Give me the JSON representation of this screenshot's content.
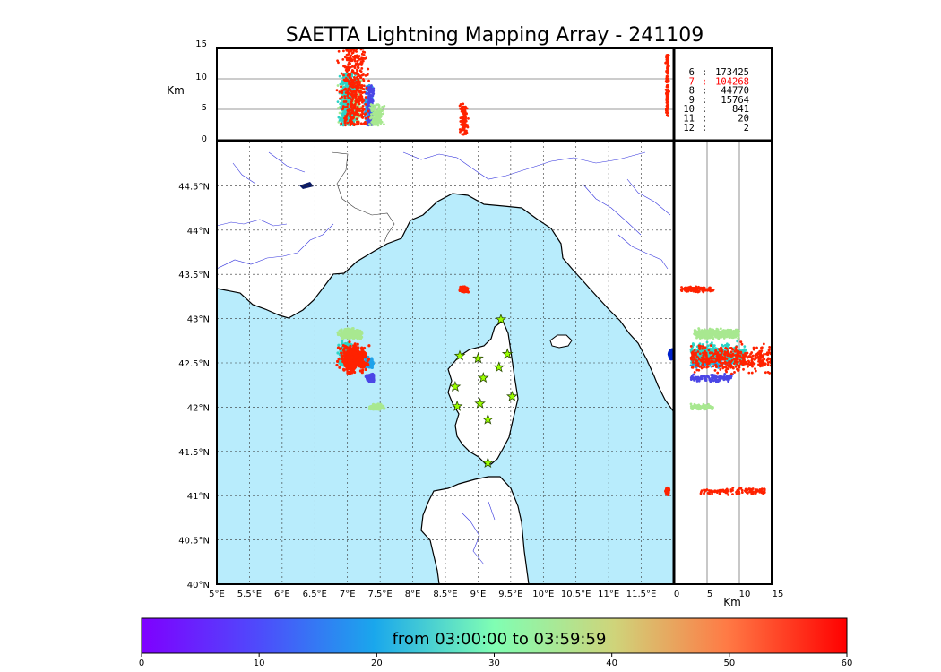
{
  "chart_data": {
    "type": "scatter",
    "title": "SAETTA Lightning Mapping Array - 241109",
    "colorbar_label": "from 03:00:00 to 03:59:59",
    "map": {
      "lon_range": [
        5.0,
        12.0
      ],
      "lat_range": [
        40.0,
        45.0
      ],
      "x_tick_labels": [
        "5°E",
        "5.5°E",
        "6°E",
        "6.5°E",
        "7°E",
        "7.5°E",
        "8°E",
        "8.5°E",
        "9°E",
        "9.5°E",
        "10°E",
        "10.5°E",
        "11°E",
        "11.5°E"
      ],
      "y_tick_labels": [
        "40°N",
        "40.5°N",
        "41°N",
        "41.5°N",
        "42°N",
        "42.5°N",
        "43°N",
        "43.5°N",
        "44°N",
        "44.5°N"
      ],
      "grid": true,
      "sea_color": "#b8ecfc",
      "river_color": "#3333dd"
    },
    "altitude_panel": {
      "ylabel": "Km",
      "ylim": [
        0,
        15
      ],
      "y_tick_labels": [
        "0",
        "5",
        "10",
        "15"
      ]
    },
    "side_panel": {
      "xlabel": "Km",
      "xlim": [
        0,
        15
      ],
      "x_tick_labels": [
        "0",
        "5",
        "10",
        "15"
      ]
    },
    "station_counts": [
      {
        "stations": "6",
        "count": "173425",
        "highlight": false
      },
      {
        "stations": "7",
        "count": "104268",
        "highlight": true
      },
      {
        "stations": "8",
        "count": "44770",
        "highlight": false
      },
      {
        "stations": "9",
        "count": "15764",
        "highlight": false
      },
      {
        "stations": "10",
        "count": "841",
        "highlight": false
      },
      {
        "stations": "11",
        "count": "20",
        "highlight": false
      },
      {
        "stations": "12",
        "count": "2",
        "highlight": false
      }
    ],
    "colorbar": {
      "min": 0,
      "max": 60,
      "tick_labels": [
        "0",
        "10",
        "20",
        "30",
        "40",
        "50",
        "60"
      ],
      "colormap": "rainbow"
    },
    "stations": [
      {
        "lon": 9.35,
        "lat": 42.99
      },
      {
        "lon": 8.72,
        "lat": 42.58
      },
      {
        "lon": 9.0,
        "lat": 42.55
      },
      {
        "lon": 9.45,
        "lat": 42.6
      },
      {
        "lon": 9.32,
        "lat": 42.45
      },
      {
        "lon": 9.08,
        "lat": 42.33
      },
      {
        "lon": 8.65,
        "lat": 42.23
      },
      {
        "lon": 9.52,
        "lat": 42.12
      },
      {
        "lon": 8.68,
        "lat": 42.01
      },
      {
        "lon": 9.03,
        "lat": 42.04
      },
      {
        "lon": 9.15,
        "lat": 41.86
      },
      {
        "lon": 9.15,
        "lat": 41.37
      }
    ],
    "clusters": [
      {
        "lon": 7.05,
        "lat": 42.83,
        "lon_spread": 0.22,
        "lat_spread": 0.07,
        "alt_min": 3,
        "alt_max": 10,
        "color": "#a8e890"
      },
      {
        "lon": 7.32,
        "lat": 42.5,
        "lon_spread": 0.1,
        "lat_spread": 0.08,
        "alt_min": 2.5,
        "alt_max": 9,
        "color": "#1ea2ea"
      },
      {
        "lon": 7.35,
        "lat": 42.33,
        "lon_spread": 0.08,
        "lat_spread": 0.05,
        "alt_min": 2.5,
        "alt_max": 9,
        "color": "#4b46e6"
      },
      {
        "lon": 7.0,
        "lat": 42.6,
        "lon_spread": 0.16,
        "lat_spread": 0.16,
        "alt_min": 2.5,
        "alt_max": 11,
        "color": "#2dd4c6"
      },
      {
        "lon": 7.1,
        "lat": 42.55,
        "lon_spread": 0.28,
        "lat_spread": 0.22,
        "alt_min": 2.5,
        "alt_max": 15,
        "color": "#ff2200"
      },
      {
        "lon": 7.45,
        "lat": 42.0,
        "lon_spread": 0.15,
        "lat_spread": 0.04,
        "alt_min": 2.5,
        "alt_max": 6,
        "color": "#a8e890"
      },
      {
        "lon": 8.78,
        "lat": 43.33,
        "lon_spread": 0.08,
        "lat_spread": 0.04,
        "alt_min": 1,
        "alt_max": 6,
        "color": "#ff2200"
      },
      {
        "lon": 11.9,
        "lat": 41.05,
        "lon_spread": 0.03,
        "lat_spread": 0.05,
        "alt_min": 4,
        "alt_max": 14,
        "color": "#ff2200"
      },
      {
        "lon": 11.97,
        "lat": 42.6,
        "lon_spread": 0.03,
        "lat_spread": 0.05,
        "alt_min": 0,
        "alt_max": 0,
        "color": "#0022cc"
      }
    ]
  }
}
